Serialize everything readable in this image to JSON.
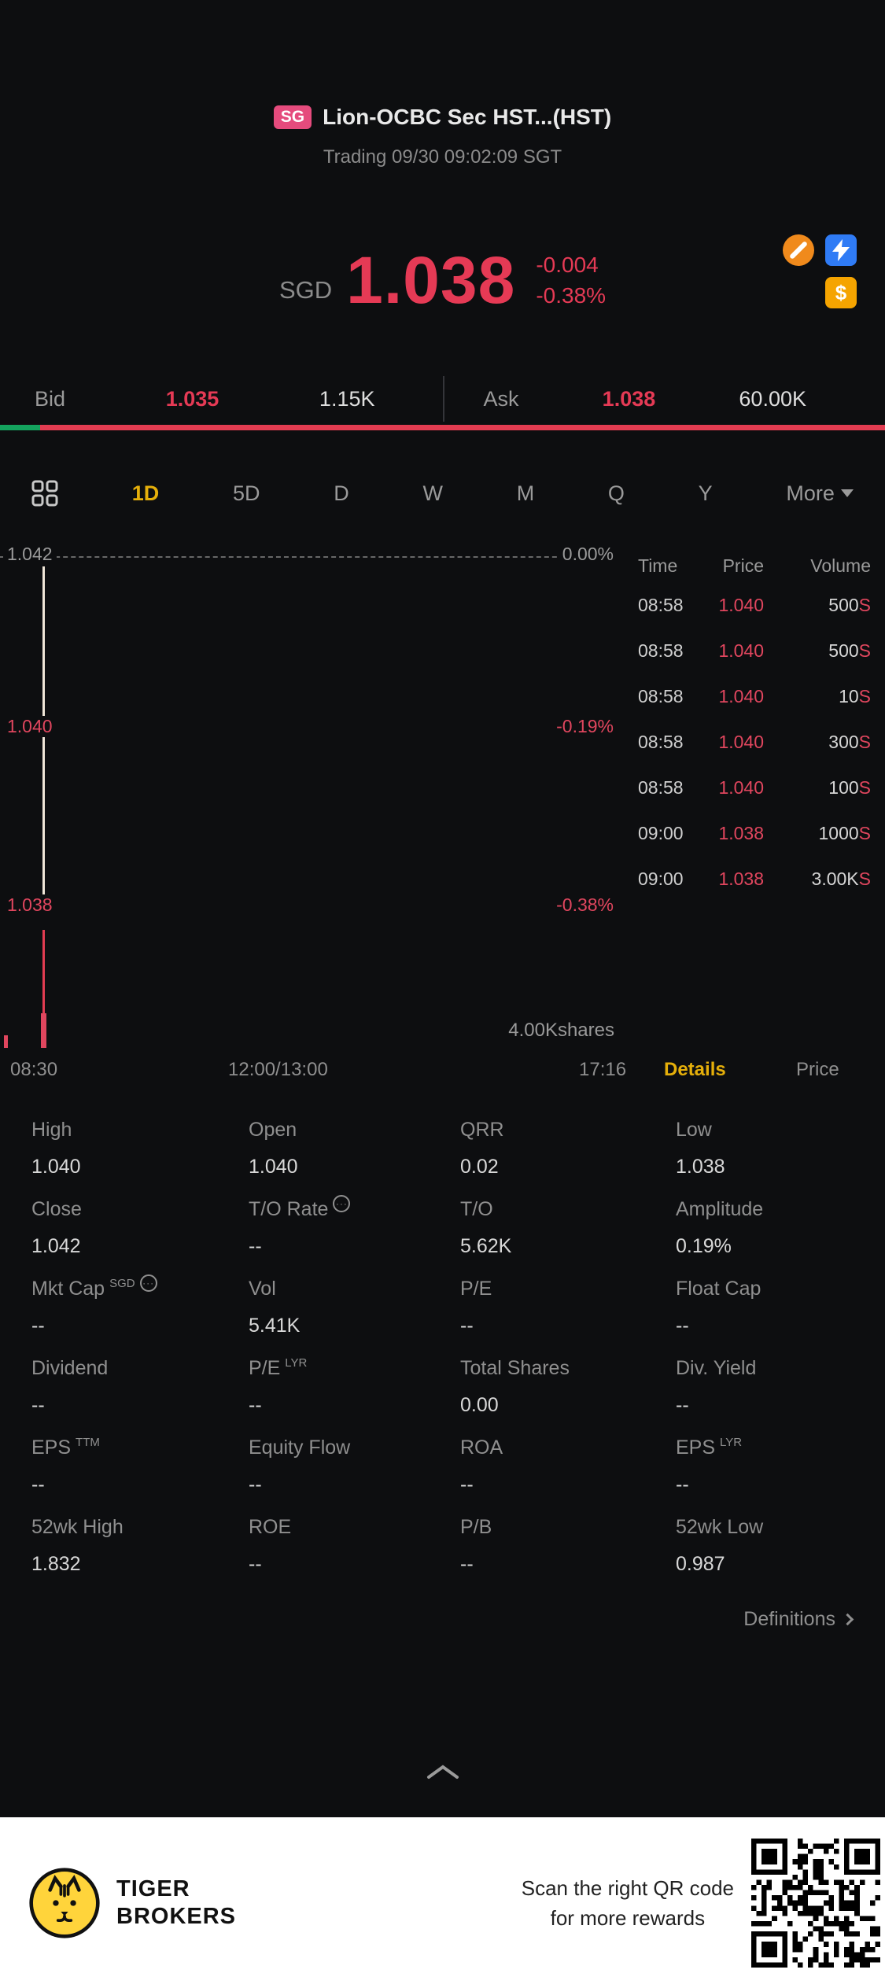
{
  "header": {
    "exchange_badge": "SG",
    "title": "Lion-OCBC Sec HST...(HST)",
    "status_line": "Trading 09/30 09:02:09 SGT"
  },
  "quote": {
    "currency": "SGD",
    "last_price": "1.038",
    "change": "-0.004",
    "change_pct": "-0.38%",
    "bid": {
      "label": "Bid",
      "price": "1.035",
      "size": "1.15K"
    },
    "ask": {
      "label": "Ask",
      "price": "1.038",
      "size": "60.00K"
    }
  },
  "colors": {
    "down_red": "#e53a55",
    "up_green": "#14a35e",
    "accent_yellow": "#e5af0a"
  },
  "period_tabs": [
    "1D",
    "5D",
    "D",
    "W",
    "M",
    "Q",
    "Y"
  ],
  "more_label": "More",
  "chart": {
    "type": "line",
    "y_axis_left": [
      "1.042",
      "1.040",
      "1.038"
    ],
    "y_axis_right": [
      "0.00%",
      "-0.19%",
      "-0.38%"
    ],
    "x_axis": [
      "08:30",
      "12:00/13:00",
      "17:16"
    ],
    "volume_annotation": "4.00Kshares"
  },
  "tape": {
    "headers": [
      "Time",
      "Price",
      "Volume"
    ],
    "rows": [
      {
        "time": "08:58",
        "price": "1.040",
        "volume": "500",
        "side": "S"
      },
      {
        "time": "08:58",
        "price": "1.040",
        "volume": "500",
        "side": "S"
      },
      {
        "time": "08:58",
        "price": "1.040",
        "volume": "10",
        "side": "S"
      },
      {
        "time": "08:58",
        "price": "1.040",
        "volume": "300",
        "side": "S"
      },
      {
        "time": "08:58",
        "price": "1.040",
        "volume": "100",
        "side": "S"
      },
      {
        "time": "09:00",
        "price": "1.038",
        "volume": "1000",
        "side": "S"
      },
      {
        "time": "09:00",
        "price": "1.038",
        "volume": "3.00K",
        "side": "S"
      }
    ]
  },
  "view_tabs": {
    "details": "Details",
    "price": "Price"
  },
  "details": {
    "cells": [
      {
        "label": "High",
        "value": "1.040"
      },
      {
        "label": "Open",
        "value": "1.040"
      },
      {
        "label": "QRR",
        "value": "0.02"
      },
      {
        "label": "Low",
        "value": "1.038"
      },
      {
        "label": "Close",
        "value": "1.042"
      },
      {
        "label": "T/O Rate",
        "value": "--"
      },
      {
        "label": "T/O",
        "value": "5.62K"
      },
      {
        "label": "Amplitude",
        "value": "0.19%"
      },
      {
        "label": "Mkt Cap",
        "sup": "SGD",
        "value": "--"
      },
      {
        "label": "Vol",
        "value": "5.41K"
      },
      {
        "label": "P/E",
        "value": "--"
      },
      {
        "label": "Float Cap",
        "value": "--"
      },
      {
        "label": "Dividend",
        "value": "--"
      },
      {
        "label": "P/E",
        "sup": "LYR",
        "value": "--"
      },
      {
        "label": "Total Shares",
        "value": "0.00"
      },
      {
        "label": "Div. Yield",
        "value": "--"
      },
      {
        "label": "EPS",
        "sup": "TTM",
        "value": "--"
      },
      {
        "label": "Equity Flow",
        "value": "--"
      },
      {
        "label": "ROA",
        "value": "--"
      },
      {
        "label": "EPS",
        "sup": "LYR",
        "value": "--"
      },
      {
        "label": "52wk High",
        "value": "1.832"
      },
      {
        "label": "ROE",
        "value": "--"
      },
      {
        "label": "P/B",
        "value": "--"
      },
      {
        "label": "52wk Low",
        "value": "0.987"
      }
    ],
    "definitions_label": "Definitions"
  },
  "footer": {
    "brand_line1": "TIGER",
    "brand_line2": "BROKERS",
    "promo_line1": "Scan the right QR code",
    "promo_line2": "for more rewards"
  }
}
